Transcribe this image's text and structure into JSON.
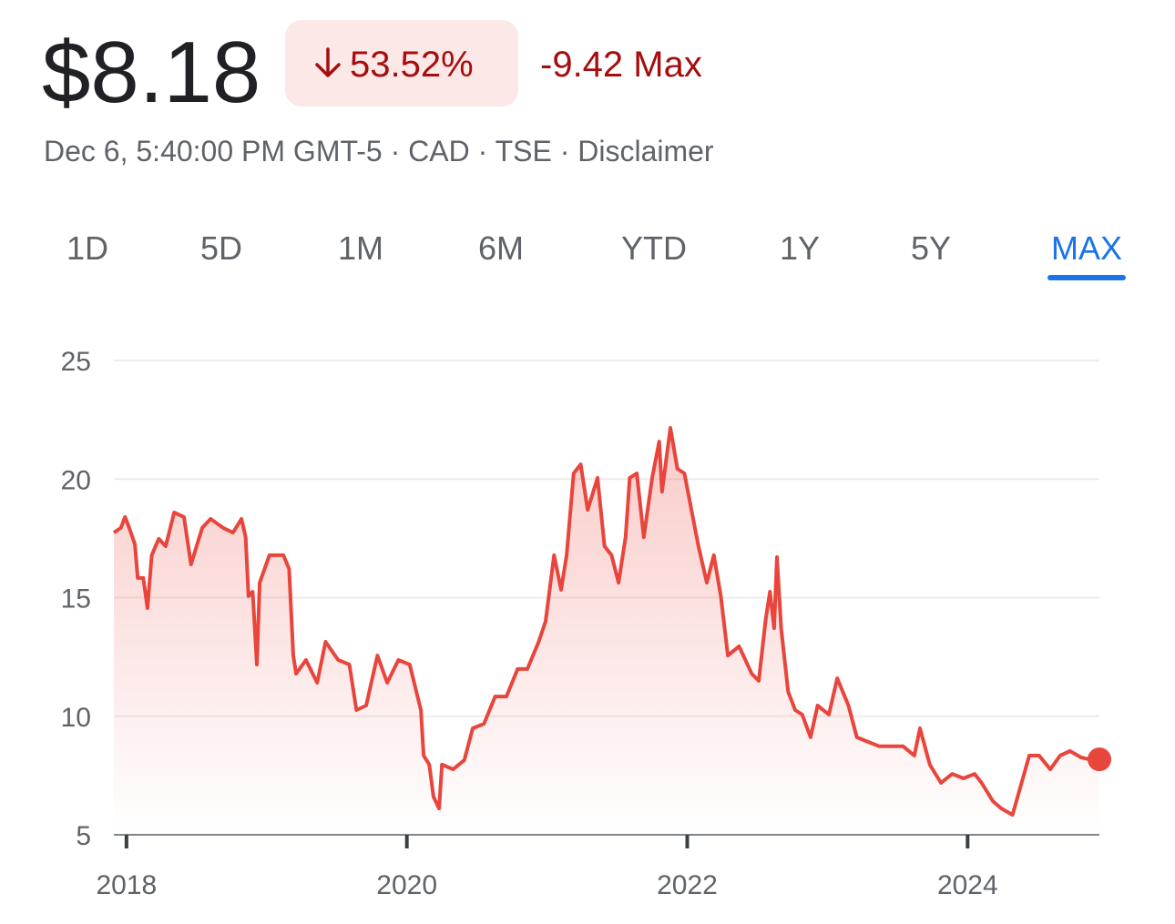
{
  "header": {
    "price": "$8.18",
    "change_percent": "53.52%",
    "change": "-9.42 Max",
    "info": "Dec 6, 5:40:00 PM GMT-5 · CAD · TSE · Disclaimer"
  },
  "tabs": {
    "items": [
      "1D",
      "5D",
      "1M",
      "6M",
      "YTD",
      "1Y",
      "5Y",
      "MAX"
    ],
    "selected": "MAX"
  },
  "chart_data": {
    "type": "line",
    "x": [
      2017.91,
      2017.96,
      2017.99,
      2018.02,
      2018.06,
      2018.08,
      2018.12,
      2018.15,
      2018.18,
      2018.23,
      2018.28,
      2018.34,
      2018.41,
      2018.46,
      2018.54,
      2018.6,
      2018.69,
      2018.76,
      2018.82,
      2018.85,
      2018.87,
      2018.9,
      2018.93,
      2018.95,
      2019.02,
      2019.12,
      2019.16,
      2019.19,
      2019.21,
      2019.28,
      2019.36,
      2019.42,
      2019.51,
      2019.59,
      2019.64,
      2019.71,
      2019.79,
      2019.86,
      2019.94,
      2020.02,
      2020.1,
      2020.12,
      2020.16,
      2020.19,
      2020.23,
      2020.25,
      2020.33,
      2020.41,
      2020.47,
      2020.55,
      2020.63,
      2020.71,
      2020.79,
      2020.86,
      2020.94,
      2020.99,
      2021.05,
      2021.1,
      2021.14,
      2021.19,
      2021.24,
      2021.29,
      2021.36,
      2021.41,
      2021.46,
      2021.51,
      2021.56,
      2021.59,
      2021.64,
      2021.69,
      2021.75,
      2021.8,
      2021.82,
      2021.88,
      2021.93,
      2021.98,
      2022.03,
      2022.08,
      2022.14,
      2022.19,
      2022.24,
      2022.29,
      2022.37,
      2022.46,
      2022.51,
      2022.56,
      2022.59,
      2022.62,
      2022.64,
      2022.67,
      2022.72,
      2022.77,
      2022.82,
      2022.88,
      2022.93,
      2023.01,
      2023.07,
      2023.15,
      2023.21,
      2023.29,
      2023.37,
      2023.46,
      2023.54,
      2023.62,
      2023.66,
      2023.73,
      2023.81,
      2023.89,
      2023.97,
      2024.05,
      2024.1,
      2024.18,
      2024.24,
      2024.32,
      2024.37,
      2024.44,
      2024.51,
      2024.59,
      2024.66,
      2024.73,
      2024.81,
      2024.89,
      2024.94
    ],
    "series": [
      {
        "color": "#e8453c",
        "values": [
          17.74,
          17.94,
          18.4,
          17.94,
          17.25,
          15.83,
          15.83,
          14.56,
          16.79,
          17.48,
          17.17,
          18.59,
          18.4,
          16.4,
          17.94,
          18.32,
          17.94,
          17.74,
          18.32,
          17.55,
          15.06,
          15.25,
          12.18,
          15.63,
          16.79,
          16.79,
          16.21,
          12.56,
          11.79,
          12.37,
          11.41,
          13.14,
          12.37,
          12.18,
          10.26,
          10.45,
          12.56,
          11.41,
          12.37,
          12.18,
          10.26,
          8.34,
          7.96,
          6.61,
          6.11,
          7.96,
          7.76,
          8.15,
          9.49,
          9.68,
          10.83,
          10.83,
          11.99,
          11.99,
          13.14,
          14.0,
          16.79,
          15.33,
          16.79,
          20.24,
          20.62,
          18.7,
          20.05,
          17.17,
          16.79,
          15.63,
          17.55,
          20.05,
          20.24,
          17.55,
          20.05,
          21.58,
          19.47,
          22.16,
          20.43,
          20.24,
          18.7,
          17.17,
          15.63,
          16.79,
          15.06,
          12.56,
          12.95,
          11.79,
          11.49,
          14.1,
          15.25,
          13.71,
          16.71,
          13.71,
          11.03,
          10.26,
          10.07,
          9.11,
          10.45,
          10.07,
          11.6,
          10.45,
          9.11,
          8.92,
          8.73,
          8.73,
          8.73,
          8.34,
          9.49,
          7.96,
          7.19,
          7.57,
          7.38,
          7.57,
          7.19,
          6.42,
          6.11,
          5.84,
          6.88,
          8.34,
          8.34,
          7.76,
          8.34,
          8.53,
          8.26,
          8.15,
          8.18
        ]
      }
    ],
    "xlim": [
      2017.91,
      2024.94
    ],
    "xticks": [
      2018,
      2020,
      2022,
      2024
    ],
    "ylim": [
      5,
      25
    ],
    "yticks": [
      5,
      10,
      15,
      20,
      25
    ],
    "grid": true
  }
}
